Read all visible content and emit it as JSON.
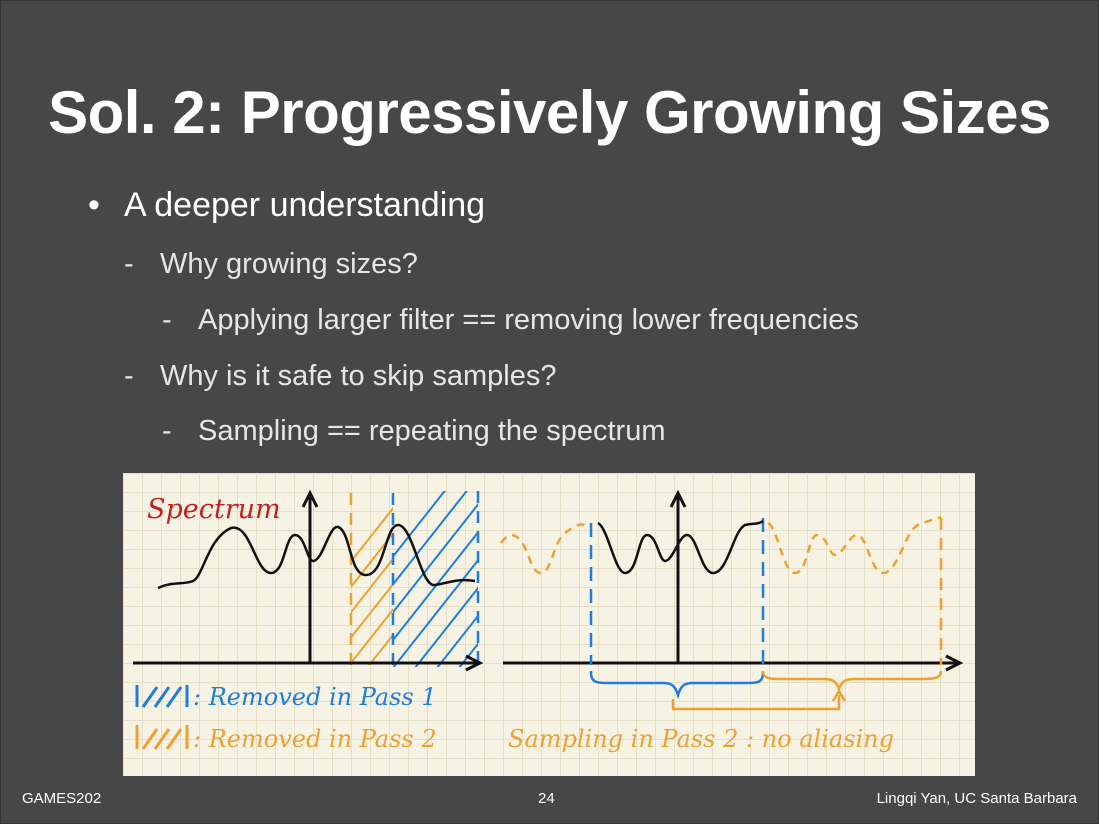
{
  "slide": {
    "title": "Sol. 2: Progressively Growing Sizes",
    "bullets": {
      "b1": "A deeper understanding",
      "b1_1": "Why growing sizes?",
      "b1_1_1": "Applying larger filter == removing lower frequencies",
      "b1_2": "Why is it safe to skip samples?",
      "b1_2_1": "Sampling == repeating the spectrum"
    },
    "dash": "-",
    "dot": "•"
  },
  "figure": {
    "spectrum_label": "Spectrum",
    "legend_blue": ": Removed in Pass 1",
    "legend_orange": ": Removed in Pass 2",
    "caption": "Sampling in Pass 2 : no aliasing",
    "colors": {
      "red": "#c81e1e",
      "blue": "#1f7de0",
      "orange": "#f0a030",
      "ink": "#111111"
    }
  },
  "footer": {
    "left": "GAMES202",
    "center": "24",
    "right": "Lingqi Yan, UC Santa Barbara"
  }
}
